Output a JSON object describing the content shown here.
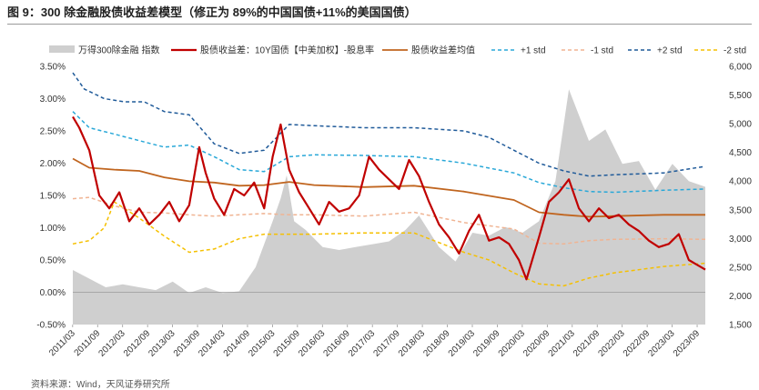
{
  "title": "图 9：300 除金融股债收益差模型（修正为 89%的中国国债+11%的美国国债）",
  "source": "资料来源：Wind，天风证券研究所",
  "chart_data": {
    "type": "line",
    "title": "图 9：300 除金融股债收益差模型（修正为 89%的中国国债+11%的美国国债）",
    "y_left": {
      "range": [
        -0.5,
        3.5
      ],
      "ticks": [
        "-0.50%",
        "0.00%",
        "0.50%",
        "1.00%",
        "1.50%",
        "2.00%",
        "2.50%",
        "3.00%",
        "3.50%"
      ],
      "tick_values": [
        -0.5,
        0,
        0.5,
        1.0,
        1.5,
        2.0,
        2.5,
        3.0,
        3.5
      ]
    },
    "y_right": {
      "range": [
        1500,
        6000
      ],
      "ticks": [
        "1,500",
        "2,000",
        "2,500",
        "3,000",
        "3,500",
        "4,000",
        "4,500",
        "5,000",
        "5,500",
        "6,000"
      ],
      "tick_values": [
        1500,
        2000,
        2500,
        3000,
        3500,
        4000,
        4500,
        5000,
        5500,
        6000
      ]
    },
    "x_range": [
      2011.17,
      2023.83
    ],
    "x_ticks": [
      "2011/03",
      "2011/09",
      "2012/03",
      "2012/09",
      "2013/03",
      "2013/09",
      "2014/03",
      "2014/09",
      "2015/03",
      "2015/09",
      "2016/03",
      "2016/09",
      "2017/03",
      "2017/09",
      "2018/03",
      "2018/09",
      "2019/03",
      "2019/09",
      "2020/03",
      "2020/09",
      "2021/03",
      "2021/09",
      "2022/03",
      "2022/09",
      "2023/03",
      "2023/09"
    ],
    "legend": [
      "万得300除金融 指数",
      "股债收益差：10Y国债【中美加权】-股息率",
      "股债收益差均值",
      "+1 std",
      "-1 std",
      "+2 std",
      "-2 std"
    ],
    "legend_position": "top",
    "colors": {
      "index_area": "#cfcfcf",
      "spread": "#c00000",
      "mean": "#c0651f",
      "plus1": "#29a8d8",
      "minus1": "#f0b493",
      "plus2": "#1f5a99",
      "minus2": "#f5c000"
    },
    "series": [
      {
        "name": "万得300除金融 指数",
        "axis": "right",
        "x": [
          2011.17,
          2011.5,
          2011.83,
          2012.17,
          2012.5,
          2012.83,
          2013.17,
          2013.5,
          2013.83,
          2014.17,
          2014.5,
          2014.83,
          2015.17,
          2015.33,
          2015.45,
          2015.6,
          2015.83,
          2016.17,
          2016.5,
          2016.83,
          2017.17,
          2017.5,
          2017.83,
          2018.1,
          2018.5,
          2018.83,
          2019.17,
          2019.5,
          2019.83,
          2020.17,
          2020.5,
          2020.83,
          2021.1,
          2021.5,
          2021.83,
          2022.17,
          2022.5,
          2022.83,
          2023.17,
          2023.5,
          2023.83
        ],
        "values": [
          2450,
          2300,
          2150,
          2200,
          2150,
          2100,
          2250,
          2050,
          2150,
          2050,
          2080,
          2500,
          3300,
          3700,
          4100,
          3300,
          3150,
          2850,
          2800,
          2850,
          2900,
          2950,
          3150,
          3400,
          2850,
          2600,
          3100,
          3050,
          3200,
          3100,
          3300,
          4000,
          5600,
          4700,
          4900,
          4300,
          4350,
          3850,
          4300,
          4000,
          3900
        ]
      },
      {
        "name": "股债收益差：10Y国债【中美加权】-股息率",
        "axis": "left",
        "x": [
          2011.17,
          2011.3,
          2011.5,
          2011.7,
          2011.9,
          2012.1,
          2012.3,
          2012.5,
          2012.7,
          2012.9,
          2013.1,
          2013.3,
          2013.5,
          2013.7,
          2013.83,
          2014.0,
          2014.2,
          2014.4,
          2014.6,
          2014.8,
          2015.0,
          2015.17,
          2015.33,
          2015.5,
          2015.7,
          2015.9,
          2016.1,
          2016.3,
          2016.5,
          2016.7,
          2016.9,
          2017.1,
          2017.3,
          2017.5,
          2017.7,
          2017.9,
          2018.1,
          2018.3,
          2018.5,
          2018.7,
          2018.9,
          2019.1,
          2019.3,
          2019.5,
          2019.7,
          2019.9,
          2020.1,
          2020.25,
          2020.5,
          2020.7,
          2020.9,
          2021.1,
          2021.3,
          2021.5,
          2021.7,
          2021.9,
          2022.1,
          2022.3,
          2022.5,
          2022.7,
          2022.9,
          2023.1,
          2023.3,
          2023.5,
          2023.83
        ],
        "values": [
          2.72,
          2.55,
          2.2,
          1.5,
          1.3,
          1.55,
          1.1,
          1.3,
          1.05,
          1.2,
          1.4,
          1.1,
          1.35,
          2.25,
          1.85,
          1.45,
          1.2,
          1.6,
          1.5,
          1.7,
          1.3,
          2.1,
          2.6,
          1.9,
          1.55,
          1.3,
          1.05,
          1.4,
          1.25,
          1.3,
          1.5,
          2.1,
          1.9,
          1.75,
          1.6,
          2.05,
          1.8,
          1.4,
          1.05,
          0.85,
          0.6,
          0.95,
          1.2,
          0.8,
          0.85,
          0.75,
          0.5,
          0.2,
          0.85,
          1.4,
          1.55,
          1.75,
          1.3,
          1.1,
          1.3,
          1.15,
          1.2,
          1.05,
          0.95,
          0.8,
          0.7,
          0.75,
          0.9,
          0.5,
          0.35
        ]
      },
      {
        "name": "股债收益差均值",
        "axis": "left",
        "x": [
          2011.17,
          2011.5,
          2012.0,
          2012.5,
          2013.0,
          2013.5,
          2014.0,
          2014.5,
          2015.0,
          2015.5,
          2016.0,
          2017.0,
          2018.0,
          2019.0,
          2020.0,
          2020.5,
          2021.0,
          2021.5,
          2022.0,
          2023.0,
          2023.83
        ],
        "values": [
          2.07,
          1.93,
          1.9,
          1.88,
          1.78,
          1.72,
          1.7,
          1.65,
          1.66,
          1.71,
          1.66,
          1.63,
          1.65,
          1.56,
          1.43,
          1.24,
          1.2,
          1.17,
          1.18,
          1.2,
          1.2
        ]
      },
      {
        "name": "+1 std",
        "axis": "left",
        "x": [
          2011.17,
          2011.5,
          2012.0,
          2012.5,
          2013.0,
          2013.5,
          2014.0,
          2014.5,
          2015.0,
          2015.5,
          2016.0,
          2017.0,
          2018.0,
          2019.0,
          2020.0,
          2020.5,
          2021.0,
          2021.5,
          2022.0,
          2023.0,
          2023.83
        ],
        "values": [
          2.8,
          2.55,
          2.45,
          2.35,
          2.25,
          2.28,
          2.1,
          1.9,
          1.87,
          2.1,
          2.13,
          2.12,
          2.1,
          2.0,
          1.85,
          1.7,
          1.62,
          1.56,
          1.55,
          1.58,
          1.6
        ]
      },
      {
        "name": "-1 std",
        "axis": "left",
        "x": [
          2011.17,
          2011.5,
          2012.0,
          2012.5,
          2013.0,
          2013.5,
          2014.0,
          2014.5,
          2015.0,
          2015.5,
          2016.0,
          2017.0,
          2018.0,
          2019.0,
          2020.0,
          2020.5,
          2021.0,
          2021.5,
          2022.0,
          2023.0,
          2023.83
        ],
        "values": [
          1.45,
          1.47,
          1.34,
          1.24,
          1.23,
          1.2,
          1.18,
          1.2,
          1.22,
          1.2,
          1.2,
          1.18,
          1.24,
          1.08,
          0.98,
          0.76,
          0.75,
          0.8,
          0.82,
          0.83,
          0.82
        ]
      },
      {
        "name": "+2 std",
        "axis": "left",
        "x": [
          2011.17,
          2011.4,
          2011.8,
          2012.2,
          2012.6,
          2013.0,
          2013.5,
          2014.0,
          2014.5,
          2015.0,
          2015.5,
          2016.0,
          2017.0,
          2018.0,
          2019.0,
          2019.5,
          2020.0,
          2020.5,
          2021.0,
          2021.5,
          2022.0,
          2023.0,
          2023.83
        ],
        "values": [
          3.4,
          3.15,
          3.0,
          2.95,
          2.95,
          2.8,
          2.75,
          2.3,
          2.15,
          2.2,
          2.6,
          2.58,
          2.55,
          2.55,
          2.5,
          2.4,
          2.2,
          2.0,
          1.88,
          1.8,
          1.82,
          1.85,
          1.95
        ]
      },
      {
        "name": "-2 std",
        "axis": "left",
        "x": [
          2011.17,
          2011.5,
          2011.8,
          2012.0,
          2012.5,
          2013.0,
          2013.5,
          2014.0,
          2014.5,
          2015.0,
          2015.5,
          2016.0,
          2017.0,
          2018.0,
          2019.0,
          2019.5,
          2020.0,
          2020.5,
          2021.0,
          2021.5,
          2022.0,
          2023.0,
          2023.83
        ],
        "values": [
          0.75,
          0.8,
          1.0,
          1.4,
          1.15,
          0.87,
          0.62,
          0.67,
          0.83,
          0.9,
          0.9,
          0.9,
          0.92,
          0.92,
          0.62,
          0.5,
          0.3,
          0.13,
          0.1,
          0.22,
          0.3,
          0.4,
          0.45
        ]
      }
    ]
  }
}
